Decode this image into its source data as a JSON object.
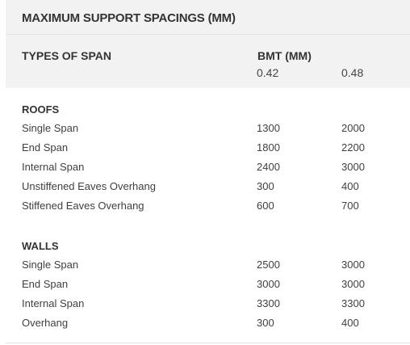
{
  "title": "MAXIMUM SUPPORT SPACINGS (MM)",
  "header": {
    "span_col": "TYPES OF SPAN",
    "bmt_col": "BMT (MM)",
    "bmt_values": [
      "0.42",
      "0.48"
    ]
  },
  "roofs": {
    "title": "ROOFS",
    "rows": [
      {
        "label": "Single Span",
        "v1": "1300",
        "v2": "2000"
      },
      {
        "label": "End Span",
        "v1": "1800",
        "v2": "2200"
      },
      {
        "label": "Internal Span",
        "v1": "2400",
        "v2": "3000"
      },
      {
        "label": "Unstiffened Eaves Overhang",
        "v1": "300",
        "v2": "400"
      },
      {
        "label": "Stiffened Eaves Overhang",
        "v1": "600",
        "v2": "700"
      }
    ]
  },
  "walls": {
    "title": "WALLS",
    "rows": [
      {
        "label": "Single Span",
        "v1": "2500",
        "v2": "3000"
      },
      {
        "label": "End Span",
        "v1": "3000",
        "v2": "3000"
      },
      {
        "label": "Internal Span",
        "v1": "3300",
        "v2": "3300"
      },
      {
        "label": "Overhang",
        "v1": "300",
        "v2": "400"
      }
    ]
  }
}
